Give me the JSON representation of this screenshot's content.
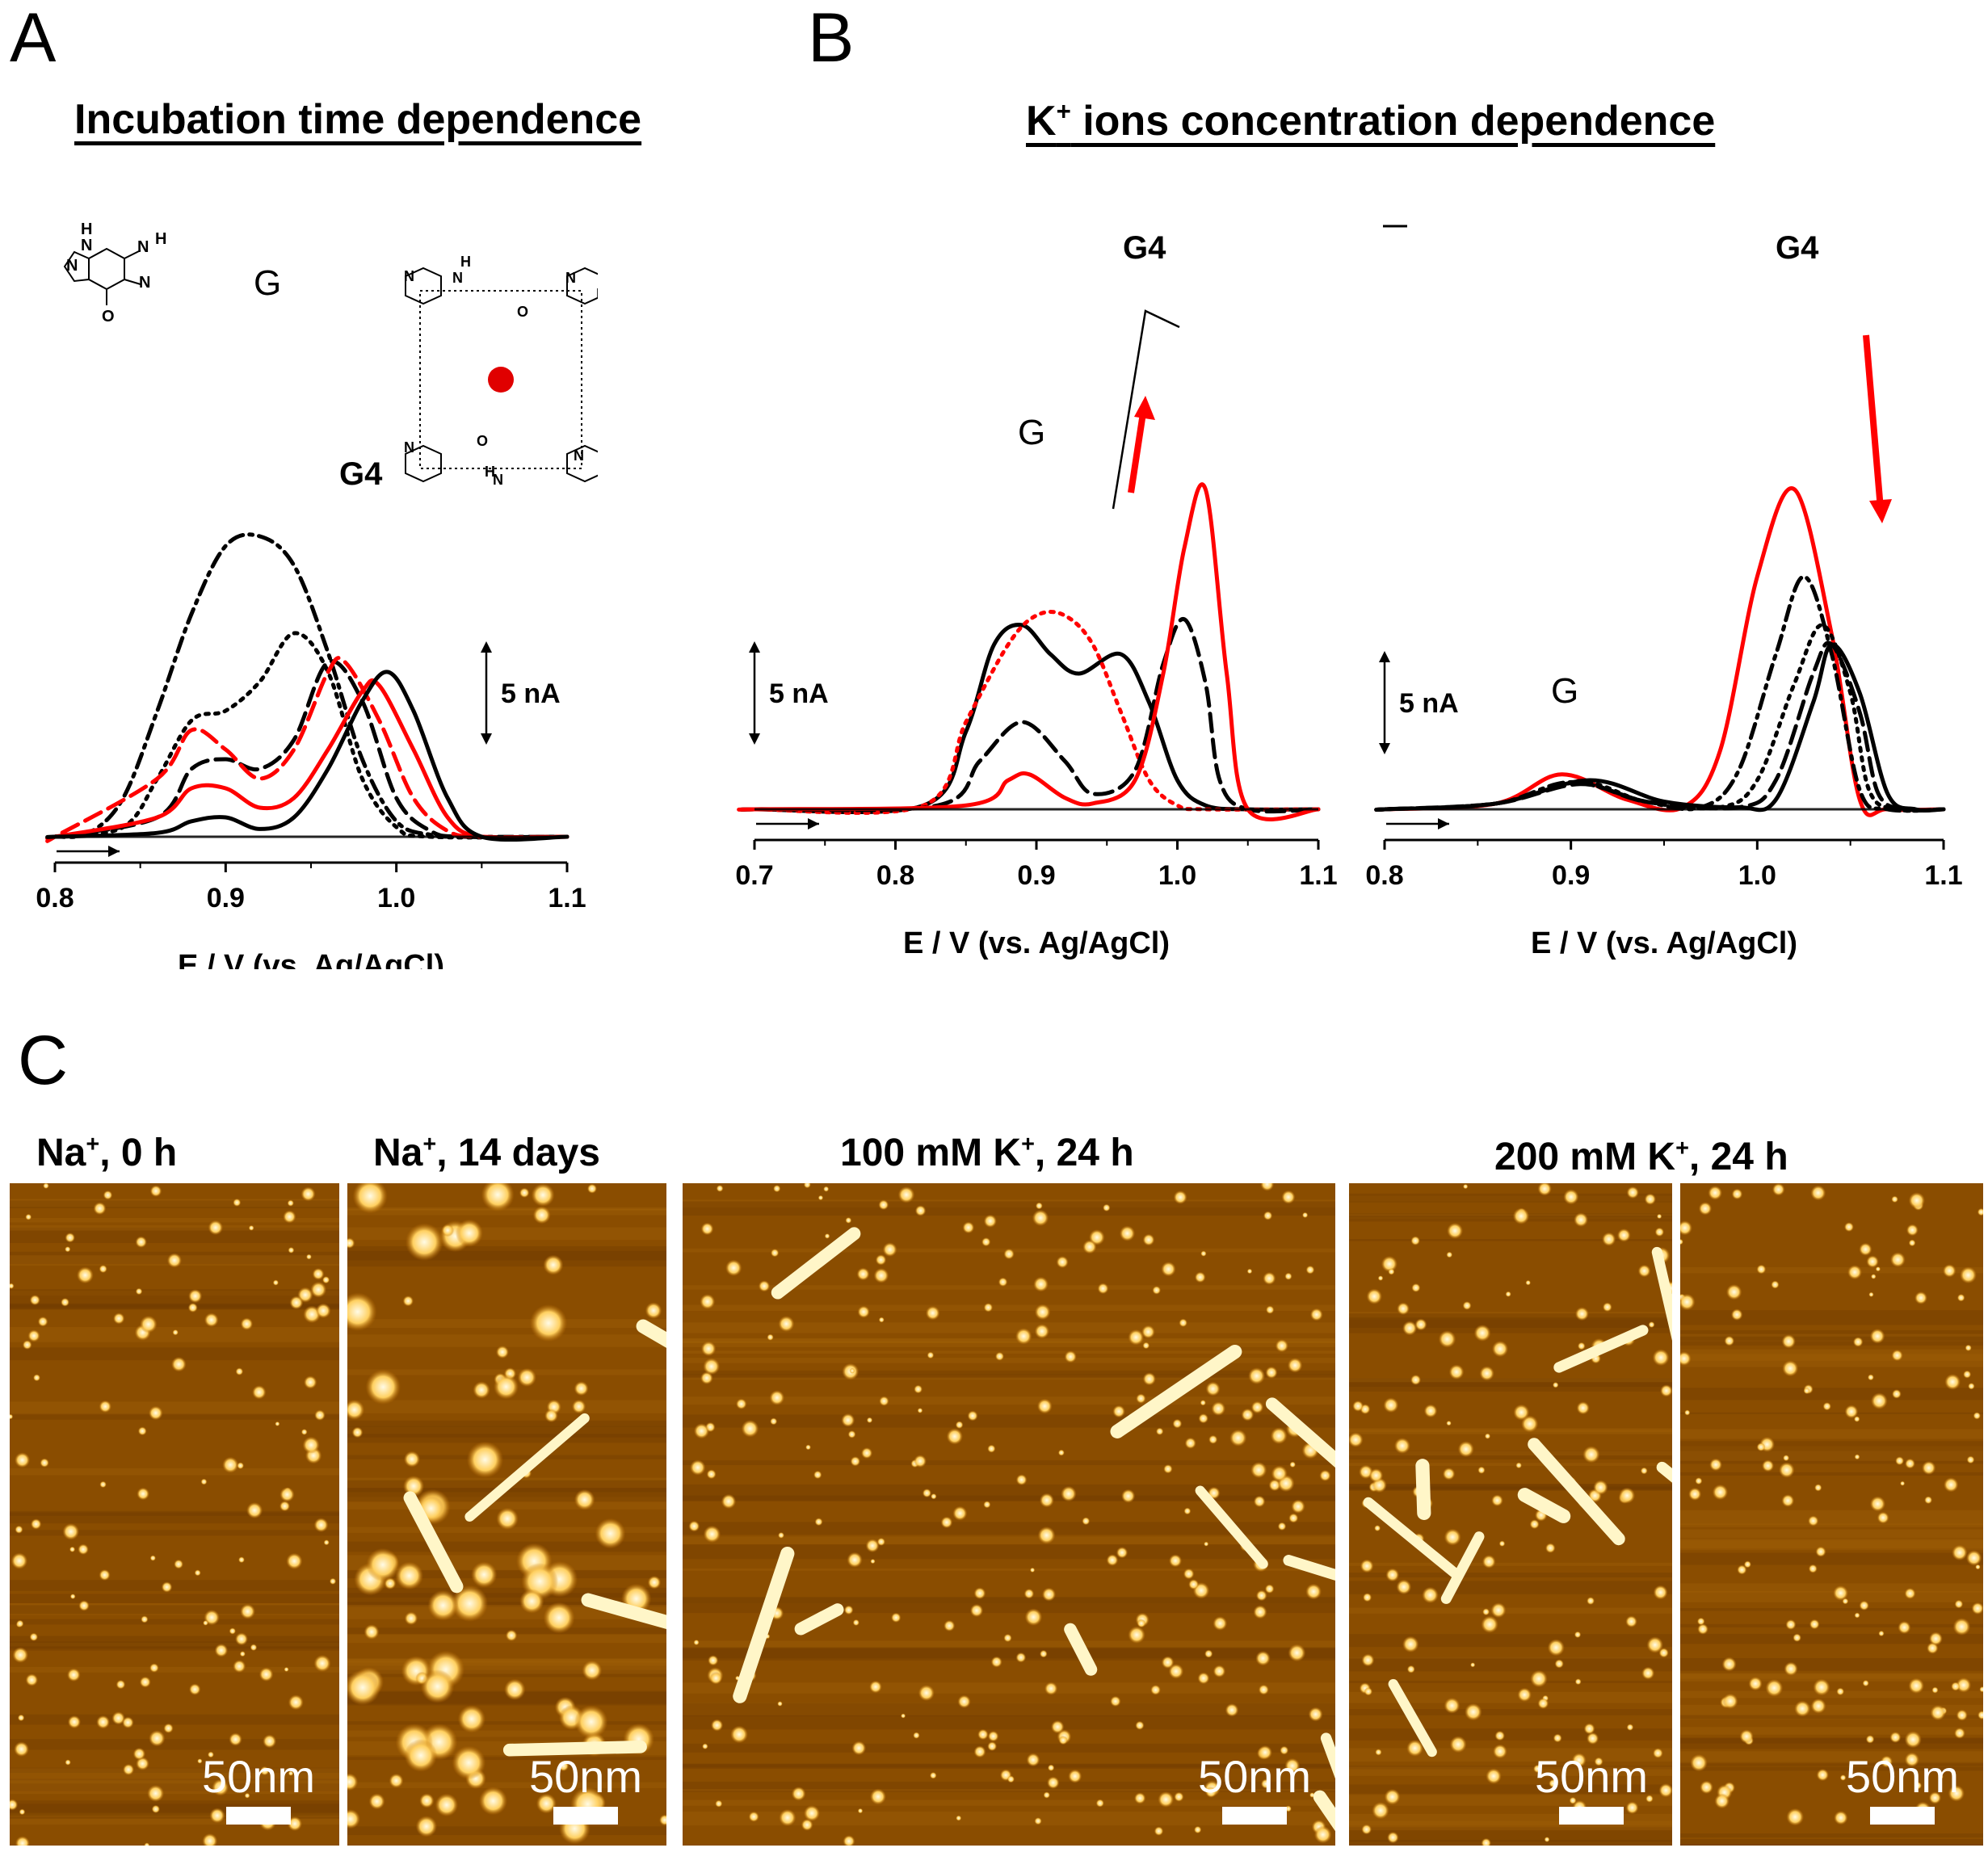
{
  "panels": {
    "a": {
      "letter": "A",
      "title": "Incubation time dependence",
      "chart_data": {
        "type": "line",
        "title": "Incubation time dependence",
        "xlabel": "E / V (vs. Ag/AgCl)",
        "xlim": [
          0.8,
          1.1
        ],
        "xticks": [
          "0.8",
          "0.9",
          "1.0",
          "1.1"
        ],
        "scale_bar": "5 nA",
        "peak_labels": [
          "G",
          "G4"
        ],
        "series": [
          {
            "name": "dash-dot black",
            "color": "#000000",
            "dash": "dashdot",
            "x": [
              0.8,
              0.82,
              0.84,
              0.86,
              0.88,
              0.9,
              0.92,
              0.94,
              0.96,
              0.98,
              1.0,
              1.02,
              1.04
            ],
            "y": [
              0.0,
              0.2,
              2.0,
              6.5,
              11.5,
              15.0,
              15.5,
              14.0,
              9.5,
              4.0,
              0.8,
              0.1,
              0.0
            ]
          },
          {
            "name": "dotted black",
            "color": "#000000",
            "dash": "dot",
            "x": [
              0.8,
              0.84,
              0.86,
              0.88,
              0.9,
              0.92,
              0.94,
              0.96,
              0.98,
              1.0,
              1.02
            ],
            "y": [
              0.0,
              0.5,
              3.0,
              6.0,
              6.5,
              8.0,
              10.5,
              8.5,
              3.0,
              0.5,
              0.0
            ]
          },
          {
            "name": "dashed black",
            "color": "#000000",
            "dash": "dash",
            "x": [
              0.8,
              0.86,
              0.88,
              0.9,
              0.92,
              0.94,
              0.96,
              0.98,
              1.0,
              1.02,
              1.04
            ],
            "y": [
              0.0,
              1.0,
              3.5,
              4.0,
              3.5,
              5.0,
              9.0,
              7.0,
              2.0,
              0.3,
              0.0
            ]
          },
          {
            "name": "dashed red",
            "color": "#ff0000",
            "dash": "dash",
            "x": [
              0.8,
              0.86,
              0.88,
              0.9,
              0.92,
              0.94,
              0.96,
              0.97,
              0.99,
              1.01,
              1.03,
              1.05
            ],
            "y": [
              0.0,
              3.0,
              5.5,
              4.5,
              3.0,
              4.5,
              8.5,
              9.0,
              6.0,
              2.0,
              0.3,
              0.0
            ]
          },
          {
            "name": "solid red",
            "color": "#ff0000",
            "dash": "solid",
            "x": [
              0.8,
              0.86,
              0.88,
              0.9,
              0.92,
              0.94,
              0.96,
              0.98,
              0.99,
              1.01,
              1.03,
              1.05
            ],
            "y": [
              0.0,
              1.0,
              2.5,
              2.5,
              1.5,
              2.0,
              4.5,
              7.5,
              7.8,
              4.5,
              1.0,
              0.0
            ]
          },
          {
            "name": "solid black",
            "color": "#000000",
            "dash": "solid",
            "x": [
              0.8,
              0.86,
              0.88,
              0.9,
              0.92,
              0.94,
              0.96,
              0.98,
              0.995,
              1.01,
              1.03,
              1.05
            ],
            "y": [
              0.0,
              0.2,
              0.8,
              1.0,
              0.4,
              1.0,
              3.5,
              7.0,
              8.5,
              6.5,
              2.0,
              0.0
            ]
          }
        ]
      }
    },
    "b": {
      "letter": "B",
      "title_prefix": "K",
      "title_sup": "+",
      "title_suffix": " ions concentration dependence",
      "charts": [
        {
          "type": "line",
          "xlabel": "E / V (vs. Ag/AgCl)",
          "xlim": [
            0.7,
            1.1
          ],
          "xticks": [
            "0.7",
            "0.8",
            "0.9",
            "1.0",
            "1.1"
          ],
          "scale_bar": "5 nA",
          "peak_labels": [
            "G",
            "G4"
          ],
          "series": [
            {
              "name": "solid black",
              "color": "#000000",
              "dash": "solid",
              "x": [
                0.7,
                0.82,
                0.85,
                0.87,
                0.89,
                0.91,
                0.93,
                0.96,
                0.98,
                1.0,
                1.02,
                1.05
              ],
              "y": [
                0.0,
                0.2,
                4.0,
                8.5,
                9.5,
                8.0,
                7.0,
                8.0,
                5.5,
                1.5,
                0.2,
                0.0
              ]
            },
            {
              "name": "dotted red",
              "color": "#ff0000",
              "dash": "dot",
              "x": [
                0.7,
                0.82,
                0.85,
                0.88,
                0.9,
                0.92,
                0.94,
                0.96,
                0.98,
                1.0,
                1.02
              ],
              "y": [
                0.0,
                0.2,
                4.5,
                8.5,
                10.0,
                10.0,
                8.5,
                5.0,
                1.5,
                0.2,
                0.0
              ]
            },
            {
              "name": "dashed black",
              "color": "#000000",
              "dash": "dash",
              "x": [
                0.7,
                0.83,
                0.86,
                0.89,
                0.92,
                0.94,
                0.97,
                0.99,
                1.005,
                1.02,
                1.03,
                1.05
              ],
              "y": [
                0.0,
                0.2,
                2.5,
                4.5,
                2.5,
                0.8,
                2.0,
                7.5,
                9.8,
                6.5,
                1.5,
                0.0
              ]
            },
            {
              "name": "solid red",
              "color": "#ff0000",
              "dash": "solid",
              "x": [
                0.7,
                0.85,
                0.88,
                0.895,
                0.92,
                0.94,
                0.97,
                0.99,
                1.005,
                1.02,
                1.035,
                1.05
              ],
              "y": [
                0.0,
                0.2,
                1.5,
                1.8,
                0.6,
                0.3,
                1.5,
                7.0,
                13.5,
                16.5,
                7.0,
                0.0
              ]
            }
          ]
        },
        {
          "type": "line",
          "xlabel": "E / V (vs. Ag/AgCl)",
          "xlim": [
            0.8,
            1.1
          ],
          "xticks": [
            "0.8",
            "0.9",
            "1.0",
            "1.1"
          ],
          "scale_bar": "5 nA",
          "peak_labels": [
            "G",
            "G4"
          ],
          "series": [
            {
              "name": "solid red",
              "color": "#ff0000",
              "dash": "solid",
              "x": [
                0.8,
                0.86,
                0.895,
                0.93,
                0.96,
                0.98,
                1.0,
                1.02,
                1.04,
                1.055,
                1.07
              ],
              "y": [
                0.0,
                0.3,
                1.8,
                0.5,
                0.1,
                3.0,
                12.0,
                16.5,
                9.0,
                0.5,
                0.0
              ]
            },
            {
              "name": "dash-dot black",
              "color": "#000000",
              "dash": "dashdot",
              "x": [
                0.8,
                0.86,
                0.9,
                0.94,
                0.97,
                0.99,
                1.01,
                1.025,
                1.04,
                1.055,
                1.07
              ],
              "y": [
                0.0,
                0.3,
                1.4,
                0.4,
                0.1,
                2.0,
                8.0,
                12.0,
                8.0,
                1.0,
                0.0
              ]
            },
            {
              "name": "dotted black",
              "color": "#000000",
              "dash": "dot",
              "x": [
                0.8,
                0.86,
                0.905,
                0.94,
                0.98,
                1.0,
                1.02,
                1.035,
                1.05,
                1.06,
                1.075
              ],
              "y": [
                0.0,
                0.3,
                1.4,
                0.4,
                0.1,
                1.5,
                6.5,
                9.5,
                6.0,
                1.0,
                0.0
              ]
            },
            {
              "name": "dashed black",
              "color": "#000000",
              "dash": "dash",
              "x": [
                0.8,
                0.86,
                0.905,
                0.94,
                0.99,
                1.01,
                1.03,
                1.04,
                1.055,
                1.065,
                1.08
              ],
              "y": [
                0.0,
                0.3,
                1.3,
                0.4,
                0.1,
                1.5,
                7.0,
                8.5,
                5.0,
                0.8,
                0.0
              ]
            },
            {
              "name": "solid black",
              "color": "#000000",
              "dash": "solid",
              "x": [
                0.8,
                0.86,
                0.91,
                0.95,
                0.99,
                1.01,
                1.03,
                1.04,
                1.055,
                1.07,
                1.085
              ],
              "y": [
                0.0,
                0.3,
                1.5,
                0.4,
                0.1,
                0.5,
                5.5,
                8.5,
                6.0,
                0.8,
                0.0
              ]
            }
          ]
        }
      ]
    },
    "c": {
      "letter": "C",
      "images": [
        {
          "label_prefix": "Na",
          "label_sup": "+",
          "label_suffix": ", 0 h",
          "scale": "50nm",
          "seed": 3,
          "kind": "dots"
        },
        {
          "label_prefix": "Na",
          "label_sup": "+",
          "label_suffix": ", 14 days",
          "scale": "50nm",
          "seed": 11,
          "kind": "blobs"
        },
        {
          "label_prefix": "100 mM K",
          "label_sup": "+",
          "label_suffix": ", 24 h",
          "scale": "50nm",
          "seed": 21,
          "kind": "mixed"
        },
        {
          "label_prefix": "200 mM K",
          "label_sup": "+",
          "label_suffix": ", 24 h",
          "scale": "50nm",
          "seed": 33,
          "kind": "rods"
        },
        {
          "label_prefix": "",
          "label_sup": "",
          "label_suffix": "",
          "scale": "50nm",
          "seed": 41,
          "kind": "dots"
        }
      ]
    }
  },
  "colors": {
    "red": "#ff0000",
    "black": "#000000",
    "afm_bg": "#8a4d00",
    "afm_hi": "#fff6c8"
  }
}
